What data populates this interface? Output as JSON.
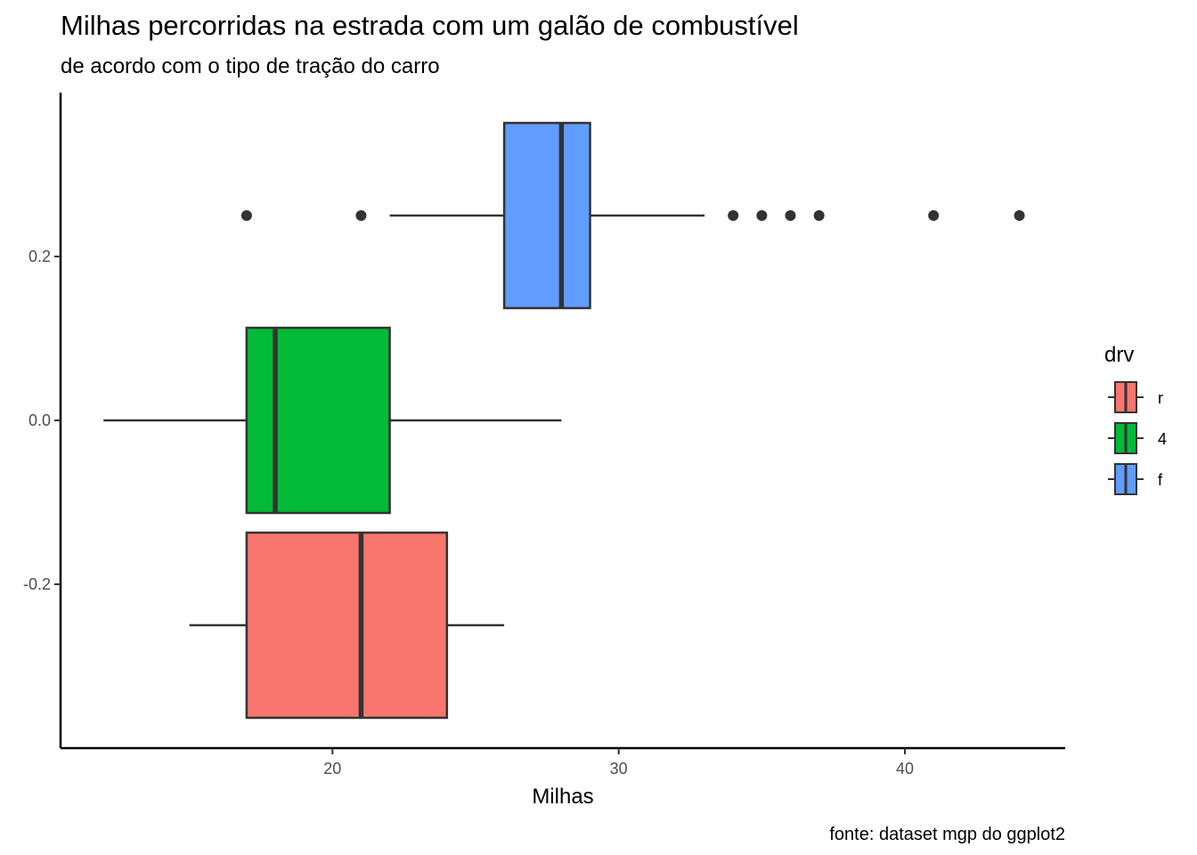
{
  "chart_data": {
    "type": "boxplot",
    "orientation": "horizontal",
    "title": "Milhas percorridas na estrada com um galão de combustível",
    "subtitle": "de acordo com o tipo de tração do carro",
    "xlabel": "Milhas",
    "ylabel": "",
    "caption": "fonte: dataset mgp do ggplot2",
    "xlim": [
      10.5,
      45.6
    ],
    "ylim": [
      -0.4,
      0.4
    ],
    "x_ticks": [
      20,
      30,
      40
    ],
    "x_tick_labels": [
      "20",
      "30",
      "40"
    ],
    "y_ticks": [
      0.2,
      0.0,
      -0.2
    ],
    "y_tick_labels": [
      "0.2",
      "0.0",
      "-0.2"
    ],
    "grid": false,
    "legend": {
      "title": "drv",
      "placement": "right",
      "entries": [
        {
          "label": "r",
          "color": "#F8766D"
        },
        {
          "label": "4",
          "color": "#00BA38"
        },
        {
          "label": "f",
          "color": "#619CFF"
        }
      ]
    },
    "series": [
      {
        "name": "r",
        "color": "#F8766D",
        "y_center": -0.25,
        "y_low": -0.363,
        "y_high": -0.137,
        "whisker_low": 15,
        "q1": 17,
        "median": 21,
        "q3": 24,
        "whisker_high": 26,
        "outliers": []
      },
      {
        "name": "4",
        "color": "#00BA38",
        "y_center": 0.0,
        "y_low": -0.113,
        "y_high": 0.113,
        "whisker_low": 12,
        "q1": 17,
        "median": 18,
        "q3": 22,
        "whisker_high": 28,
        "outliers": []
      },
      {
        "name": "f",
        "color": "#619CFF",
        "y_center": 0.25,
        "y_low": 0.137,
        "y_high": 0.363,
        "whisker_low": 22,
        "q1": 26,
        "median": 28,
        "q3": 29,
        "whisker_high": 33,
        "outliers": [
          17,
          21,
          34,
          35,
          36,
          37,
          41,
          44
        ]
      }
    ]
  }
}
